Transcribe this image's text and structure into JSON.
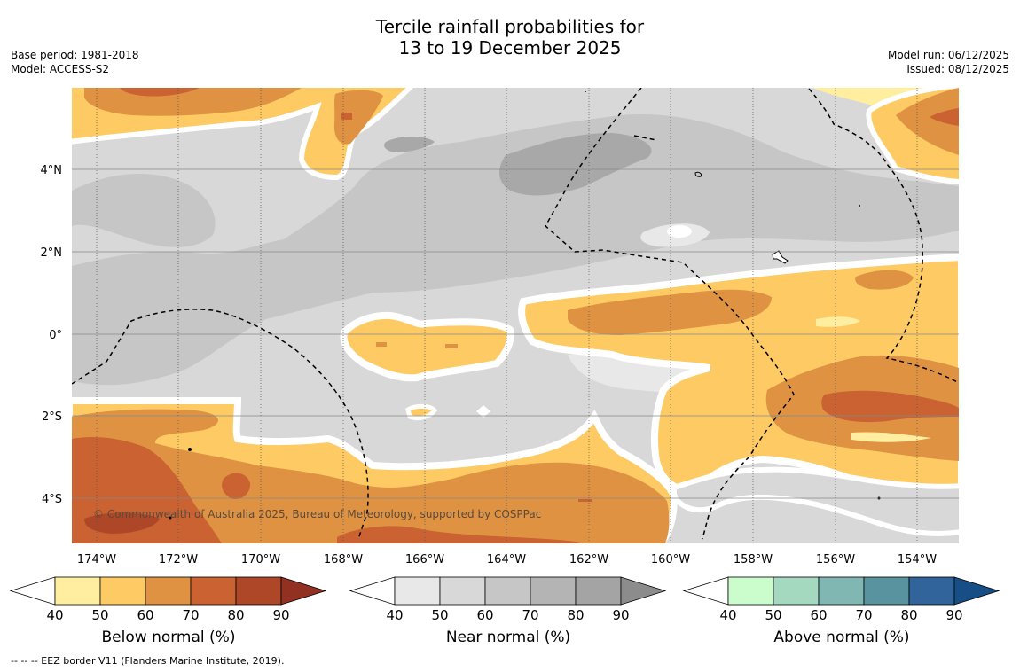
{
  "title_line1": "Tercile rainfall probabilities for",
  "title_line2": "13 to 19 December 2025",
  "meta_left": {
    "base_period": "Base period: 1981-2018",
    "model": "Model: ACCESS-S2"
  },
  "meta_right": {
    "model_run": "Model run: 06/12/2025",
    "issued": "Issued: 08/12/2025"
  },
  "map": {
    "credit": "© Commonwealth of Australia 2025, Bureau of Meteorology, supported by COSPPac",
    "x_ticks": [
      "174°W",
      "172°W",
      "170°W",
      "168°W",
      "166°W",
      "164°W",
      "162°W",
      "160°W",
      "158°W",
      "156°W",
      "154°W"
    ],
    "y_ticks": [
      "4°N",
      "2°N",
      "0°",
      "2°S",
      "4°S"
    ]
  },
  "colorbars": [
    {
      "label": "Below normal (%)",
      "ticks": [
        "40",
        "50",
        "60",
        "70",
        "80",
        "90"
      ],
      "colors": [
        "#ffeea0",
        "#fdca63",
        "#df9242",
        "#ca6232",
        "#ad4728",
        "#923021"
      ]
    },
    {
      "label": "Near normal (%)",
      "ticks": [
        "40",
        "50",
        "60",
        "70",
        "80",
        "90"
      ],
      "colors": [
        "#e8e8e8",
        "#d8d8d8",
        "#c6c6c6",
        "#b4b4b4",
        "#a4a4a4",
        "#8c8c8c"
      ]
    },
    {
      "label": "Above normal (%)",
      "ticks": [
        "40",
        "50",
        "60",
        "70",
        "80",
        "90"
      ],
      "colors": [
        "#cbfccc",
        "#a4d9c0",
        "#80b7b2",
        "#5a93a0",
        "#30649a",
        "#174e85"
      ]
    }
  ],
  "footnote": "--  --  -- EEZ border V11 (Flanders Marine Institute, 2019)."
}
